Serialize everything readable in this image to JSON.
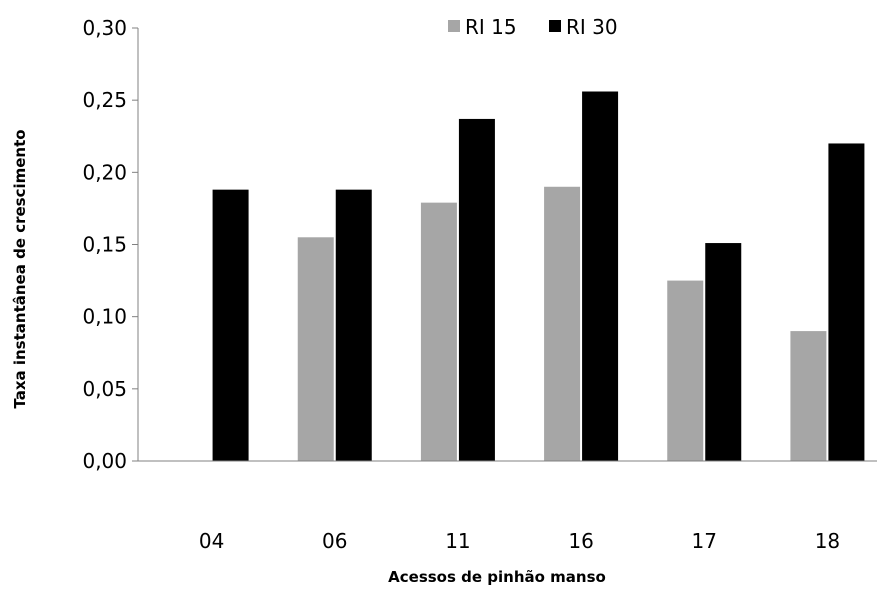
{
  "chart_data": {
    "type": "bar",
    "categories": [
      "04",
      "06",
      "11",
      "16",
      "17",
      "18"
    ],
    "series": [
      {
        "name": "RI 15",
        "color": "#a6a6a6",
        "values": [
          null,
          0.155,
          0.179,
          0.19,
          0.125,
          0.09
        ]
      },
      {
        "name": "RI 30",
        "color": "#000000",
        "values": [
          0.188,
          0.188,
          0.237,
          0.256,
          0.151,
          0.22
        ]
      }
    ],
    "title": "",
    "xlabel": "Acessos de pinhão manso",
    "ylabel": "Taxa instantânea de crescimento",
    "ylim": [
      0,
      0.3
    ],
    "yticks": [
      "0,00",
      "0,05",
      "0,10",
      "0,15",
      "0,20",
      "0,25",
      "0,30"
    ],
    "grid": false,
    "legend_position": "top"
  }
}
